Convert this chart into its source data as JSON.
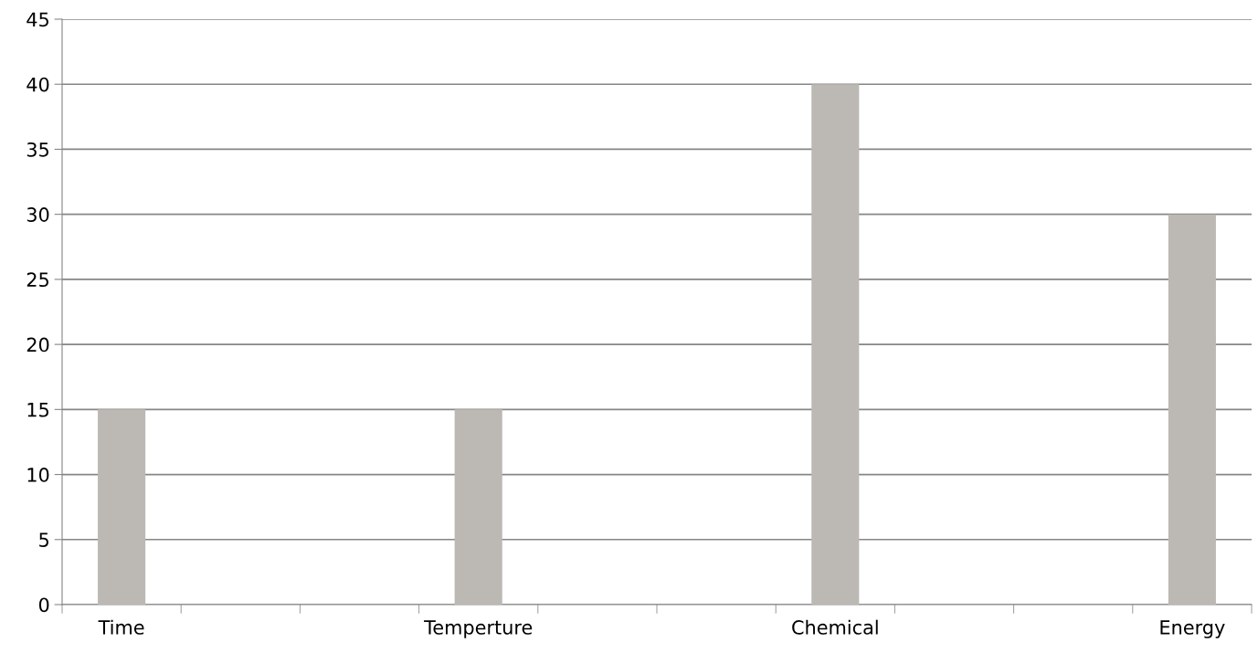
{
  "chart_data": {
    "type": "bar",
    "categories": [
      "Time",
      null,
      null,
      "Temperture",
      null,
      null,
      "Chemical",
      null,
      null,
      "Energy"
    ],
    "values": [
      15,
      null,
      null,
      15,
      null,
      null,
      40,
      null,
      null,
      30
    ],
    "color": "#bcb8b4",
    "ylim": [
      0,
      45
    ],
    "yticks": [
      0,
      5,
      10,
      15,
      20,
      25,
      30,
      35,
      40,
      45
    ],
    "grid": "y",
    "legend": false
  }
}
